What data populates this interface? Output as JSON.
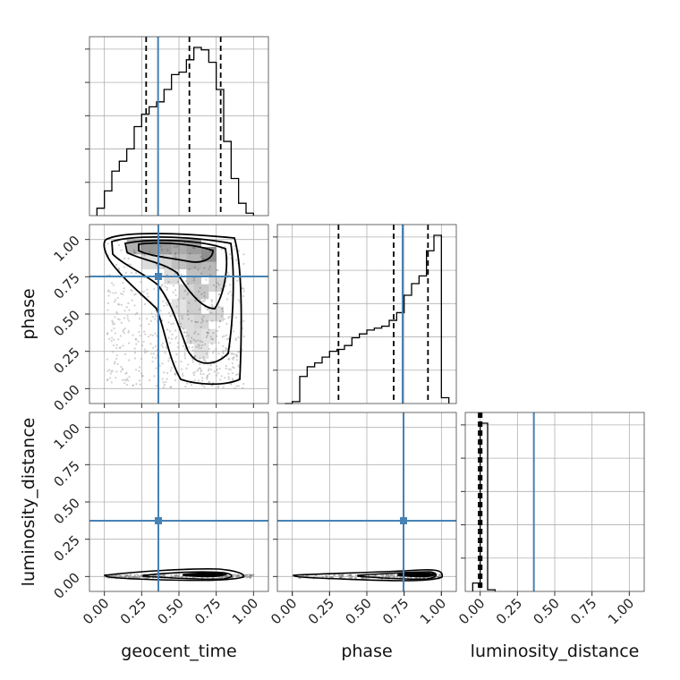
{
  "colors": {
    "truth": "#4682b4",
    "hist": "#000000",
    "grid": "#b0b0b0",
    "quantile": "#000000",
    "density": "#000000"
  },
  "chart_data": {
    "type": "corner",
    "parameters": [
      "geocent_time",
      "phase",
      "luminosity_distance"
    ],
    "ranges": {
      "geocent_time": [
        -0.1,
        1.1
      ],
      "phase": [
        -0.1,
        1.1
      ],
      "luminosity_distance": [
        -0.1,
        1.1
      ]
    },
    "ticks": [
      0.0,
      0.25,
      0.5,
      0.75,
      1.0
    ],
    "tick_labels": [
      "0.00",
      "0.25",
      "0.50",
      "0.75",
      "1.00"
    ],
    "truths": {
      "geocent_time": 0.36,
      "phase": 0.74,
      "luminosity_distance": 0.36
    },
    "grid": true,
    "histograms": {
      "geocent_time": {
        "bin_edges": [
          -0.05,
          0.0,
          0.05,
          0.1,
          0.15,
          0.2,
          0.25,
          0.3,
          0.35,
          0.4,
          0.45,
          0.5,
          0.55,
          0.6,
          0.65,
          0.7,
          0.75,
          0.8,
          0.85,
          0.9,
          0.95,
          1.0
        ],
        "counts": [
          3,
          10,
          18,
          22,
          27,
          36,
          41,
          44,
          46,
          51,
          57,
          58,
          63,
          68,
          67,
          62,
          51,
          30,
          15,
          5,
          1
        ],
        "quantiles": [
          0.28,
          0.57,
          0.78
        ]
      },
      "phase": {
        "bin_edges": [
          -0.05,
          0.0,
          0.05,
          0.1,
          0.15,
          0.2,
          0.25,
          0.3,
          0.35,
          0.4,
          0.45,
          0.5,
          0.55,
          0.6,
          0.65,
          0.7,
          0.75,
          0.8,
          0.85,
          0.9,
          0.95,
          1.0,
          1.05
        ],
        "counts": [
          0,
          1,
          14,
          19,
          21,
          24,
          27,
          28,
          30,
          34,
          36,
          38,
          39,
          40,
          43,
          47,
          56,
          62,
          66,
          79,
          87,
          3
        ],
        "quantiles": [
          0.31,
          0.68,
          0.91
        ]
      },
      "luminosity_distance": {
        "bin_edges": [
          -0.05,
          0.0,
          0.05,
          0.1
        ],
        "counts": [
          5,
          100,
          1
        ],
        "quantiles": [
          -0.01,
          0.0,
          0.01
        ]
      }
    },
    "density_2d": [
      {
        "x": "geocent_time",
        "y": "phase",
        "shape": "posterior concentrated at high phase, broad in geocent_time; strongest near phase 0.95"
      },
      {
        "x": "geocent_time",
        "y": "luminosity_distance",
        "shape": "narrow band near luminosity_distance 0.00"
      },
      {
        "x": "phase",
        "y": "luminosity_distance",
        "shape": "narrow band near luminosity_distance 0.00, thicker at high phase"
      }
    ]
  }
}
